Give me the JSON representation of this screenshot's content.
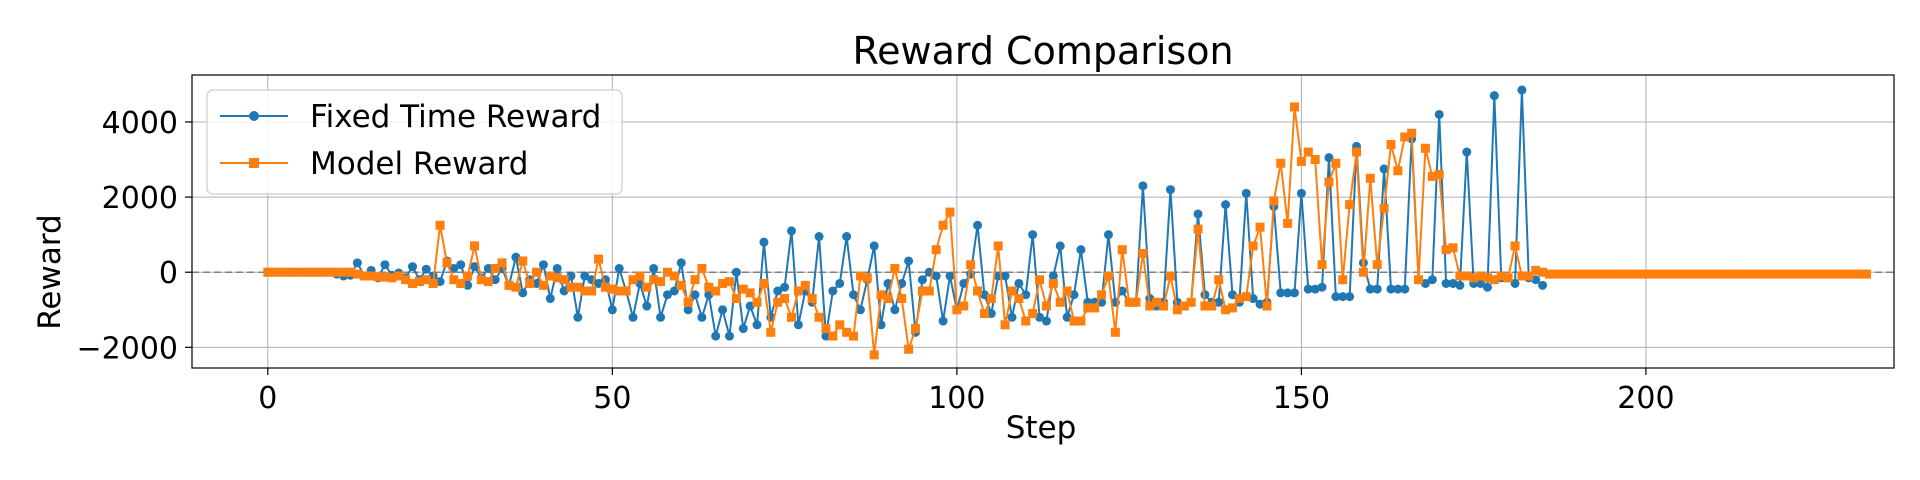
{
  "chart_data": {
    "type": "line",
    "title": "Reward Comparison",
    "xlabel": "Step",
    "ylabel": "Reward",
    "xlim": [
      -11,
      236
    ],
    "ylim": [
      -2550,
      5250
    ],
    "xticks": [
      0,
      50,
      100,
      150,
      200
    ],
    "yticks": [
      -2000,
      0,
      2000,
      4000
    ],
    "ytick_labels": [
      "−2000",
      "0",
      "2000",
      "4000"
    ],
    "grid": true,
    "reference_line": {
      "y": 0,
      "style": "dashed",
      "color": "#808080"
    },
    "legend_position": "upper-left",
    "series": [
      {
        "name": "Fixed Time Reward",
        "color": "#1f77b4",
        "marker": "circle",
        "start_x": 0,
        "values": [
          0,
          0,
          0,
          0,
          0,
          0,
          0,
          0,
          0,
          0,
          -50,
          -100,
          -80,
          250,
          -100,
          50,
          -150,
          200,
          -80,
          -20,
          -150,
          150,
          -200,
          80,
          -100,
          -250,
          300,
          100,
          200,
          -350,
          150,
          -150,
          100,
          -200,
          100,
          -350,
          400,
          -550,
          -200,
          -300,
          200,
          -700,
          100,
          -500,
          -100,
          -1200,
          -100,
          -200,
          -300,
          -200,
          -1000,
          100,
          -500,
          -1200,
          -300,
          -900,
          100,
          -1200,
          -600,
          -500,
          250,
          -1000,
          -600,
          -1200,
          -600,
          -1700,
          -1000,
          -1700,
          0,
          -1500,
          -900,
          -1400,
          800,
          -1200,
          -500,
          -400,
          1100,
          -1400,
          -500,
          -800,
          950,
          -1700,
          -500,
          -300,
          950,
          -600,
          -1000,
          -200,
          700,
          -1400,
          -300,
          -1000,
          -300,
          300,
          -1600,
          -200,
          0,
          -100,
          -1300,
          -100,
          -1000,
          -300,
          -50,
          1250,
          -600,
          -1100,
          -100,
          -100,
          -1200,
          -300,
          -600,
          1000,
          -1200,
          -1300,
          -100,
          700,
          -1200,
          -600,
          600,
          -800,
          -800,
          -800,
          1000,
          -800,
          -500,
          -800,
          -800,
          2300,
          -700,
          -900,
          -800,
          2200,
          -800,
          -900,
          -800,
          1550,
          -600,
          -800,
          -800,
          1800,
          -600,
          -800,
          2100,
          -700,
          -850,
          -800,
          1750,
          -550,
          -550,
          -550,
          2100,
          -450,
          -450,
          -400,
          3050,
          -650,
          -650,
          -650,
          3350,
          250,
          -450,
          -450,
          2750,
          -450,
          -450,
          -450,
          3550,
          -200,
          -300,
          -200,
          4200,
          -300,
          -300,
          -350,
          3200,
          -300,
          -300,
          -400,
          4700,
          -150,
          -150,
          -300,
          4850,
          -150,
          -200,
          -350
        ]
      },
      {
        "name": "Model Reward",
        "color": "#ff7f0e",
        "marker": "square",
        "start_x": 0,
        "values": [
          0,
          0,
          0,
          0,
          0,
          0,
          0,
          0,
          0,
          0,
          0,
          0,
          0,
          -50,
          -100,
          -100,
          -120,
          -130,
          -150,
          -100,
          -200,
          -300,
          -250,
          -200,
          -300,
          1250,
          250,
          -200,
          -300,
          -100,
          700,
          -200,
          -250,
          100,
          250,
          -350,
          -400,
          300,
          -300,
          0,
          -350,
          -100,
          -150,
          -200,
          -400,
          -400,
          -500,
          -500,
          350,
          -400,
          -450,
          -500,
          -500,
          -200,
          -100,
          -400,
          -200,
          -250,
          0,
          -100,
          -350,
          -800,
          -200,
          100,
          -400,
          -500,
          -300,
          -250,
          -700,
          -450,
          -550,
          -800,
          -300,
          -1600,
          -800,
          -700,
          -1200,
          -500,
          -350,
          -700,
          -1200,
          -1500,
          -1700,
          -1400,
          -1600,
          -1700,
          -100,
          -150,
          -2200,
          -600,
          -700,
          100,
          -700,
          -2050,
          -1500,
          -500,
          -500,
          600,
          1250,
          1600,
          -1000,
          -900,
          200,
          -500,
          -1100,
          -700,
          700,
          -1400,
          -500,
          -700,
          -1300,
          -1100,
          -200,
          -900,
          -300,
          -800,
          -500,
          -1300,
          -1300,
          -950,
          -950,
          -600,
          -100,
          -1600,
          600,
          -800,
          -800,
          500,
          -900,
          -800,
          -900,
          -100,
          -1000,
          -900,
          -800,
          1150,
          -900,
          -900,
          -200,
          -1000,
          -950,
          -700,
          -650,
          700,
          1200,
          -900,
          1900,
          2900,
          1300,
          4400,
          2950,
          3200,
          3000,
          200,
          2400,
          2900,
          -200,
          1800,
          3200,
          0,
          2500,
          200,
          1700,
          3400,
          2700,
          3600,
          3700,
          -200,
          3300,
          2550,
          2600,
          600,
          650,
          -100,
          -100,
          -150,
          -100,
          -150,
          -200,
          -100,
          -150,
          700,
          -100,
          -100,
          50,
          0,
          -50,
          -50,
          -50,
          -50,
          -50,
          -50,
          -50,
          -50,
          -50,
          -50,
          -50,
          -50,
          -50,
          -50,
          -50,
          -50,
          -50,
          -50,
          -50,
          -50,
          -50,
          -50,
          -50,
          -50,
          -50,
          -50,
          -50,
          -50,
          -50,
          -50,
          -50,
          -50,
          -50,
          -50,
          -50,
          -50,
          -50,
          -50,
          -50,
          -50,
          -50,
          -50,
          -50,
          -50,
          -50,
          -50,
          -50
        ]
      }
    ]
  }
}
